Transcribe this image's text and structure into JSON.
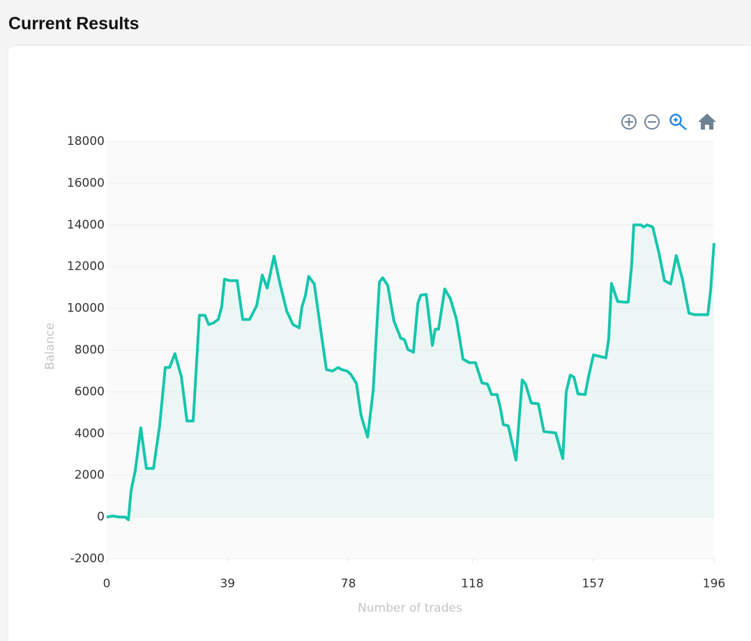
{
  "header": {
    "title": "Current Results"
  },
  "chart_data": {
    "type": "line",
    "x_label": "Number of trades",
    "y_label": "Balance",
    "grid": true,
    "area": true,
    "xlim": [
      0,
      196
    ],
    "xticks": [
      0,
      39,
      78,
      118,
      157,
      196
    ],
    "ylim": [
      -2000,
      18000
    ],
    "yticks": [
      -2000,
      0,
      2000,
      4000,
      6000,
      8000,
      10000,
      12000,
      14000,
      16000,
      18000
    ],
    "series": [
      {
        "color": "#14c6ad",
        "x": [
          0,
          2,
          4,
          6,
          7,
          7.9,
          9.2,
          11,
          12.8,
          15.1,
          17.1,
          18.9,
          20.3,
          22,
          24.1,
          25.9,
          27.9,
          29.9,
          31.7,
          32.9,
          34.4,
          36,
          37.1,
          38,
          39.8,
          42.1,
          43.9,
          46.1,
          48.4,
          50.2,
          51.8,
          54,
          56,
          58.1,
          60.1,
          62.1,
          63,
          64.1,
          65.2,
          67,
          69.1,
          70.9,
          72.9,
          74.7,
          75.8,
          77.6,
          78.8,
          80.6,
          82.1,
          84.2,
          86,
          88,
          89.1,
          90.7,
          92.7,
          94.9,
          96.1,
          97.2,
          99,
          100.4,
          101.3,
          103.1,
          105.1,
          106,
          107.1,
          109.1,
          110.9,
          112.9,
          115,
          117,
          119,
          121.1,
          122.9,
          124.2,
          126,
          127.1,
          128,
          129.6,
          132.1,
          134.1,
          135.2,
          137,
          139.3,
          141.1,
          144.9,
          147.2,
          148.3,
          149.6,
          150.8,
          152.1,
          154.4,
          155.5,
          157.1,
          159.1,
          161.1,
          162,
          162.9,
          164.9,
          166.9,
          168.3,
          169.4,
          170.1,
          172.4,
          173.3,
          174.4,
          176.2,
          178.2,
          180,
          182,
          183.8,
          185.8,
          187.9,
          189.7,
          194,
          194.9,
          196
        ],
        "values": [
          0,
          50,
          0,
          0,
          -130,
          1300,
          2200,
          4270,
          2330,
          2330,
          4400,
          7170,
          7170,
          7830,
          6730,
          4600,
          4600,
          9670,
          9670,
          9230,
          9300,
          9470,
          10070,
          11400,
          11330,
          11330,
          9470,
          9470,
          10130,
          11600,
          10970,
          12500,
          11130,
          9870,
          9230,
          9070,
          10070,
          10600,
          11530,
          11170,
          8930,
          7070,
          7000,
          7170,
          7070,
          7000,
          6830,
          6400,
          4870,
          3830,
          6070,
          11270,
          11470,
          11100,
          9400,
          8570,
          8500,
          8030,
          7900,
          10230,
          10630,
          10670,
          8230,
          9000,
          9000,
          10930,
          10470,
          9470,
          7570,
          7400,
          7400,
          6430,
          6370,
          5870,
          5870,
          5200,
          4430,
          4370,
          2730,
          6570,
          6370,
          5470,
          5430,
          4100,
          4030,
          2800,
          6000,
          6800,
          6700,
          5900,
          5870,
          6730,
          7770,
          7700,
          7630,
          8530,
          11200,
          10330,
          10300,
          10300,
          12070,
          14000,
          14000,
          13900,
          14000,
          13900,
          12670,
          11330,
          11170,
          12530,
          11400,
          9770,
          9700,
          9700,
          10870,
          13130
        ]
      }
    ]
  }
}
